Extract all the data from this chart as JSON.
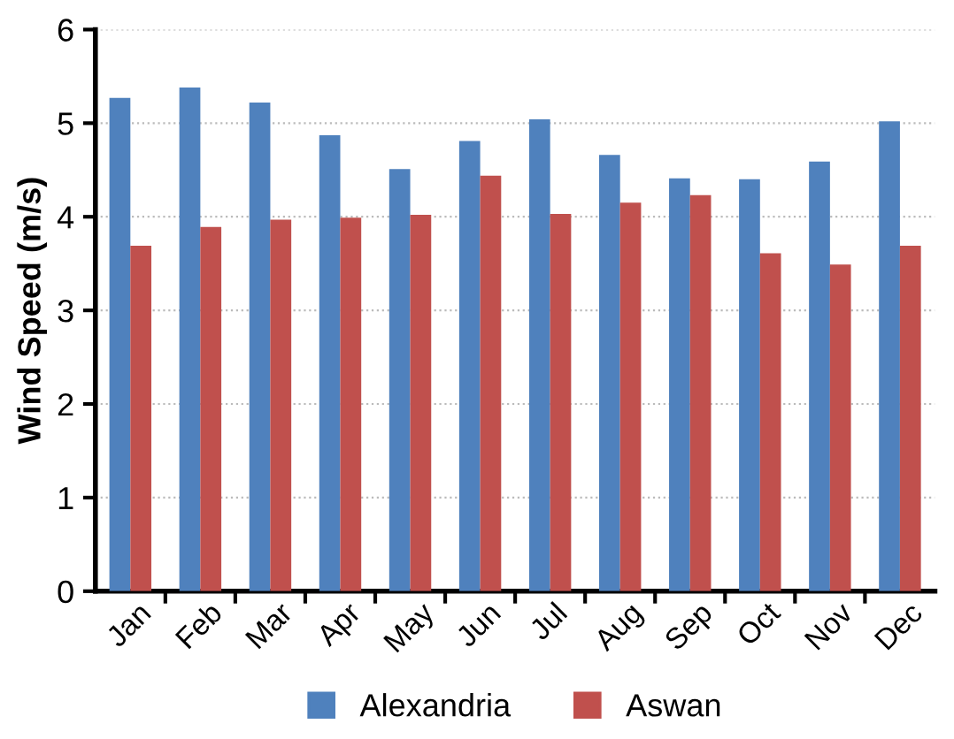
{
  "chart_data": {
    "type": "bar",
    "ylabel": "Wind Speed (m/s)",
    "categories": [
      "Jan",
      "Feb",
      "Mar",
      "Apr",
      "May",
      "Jun",
      "Jul",
      "Aug",
      "Sep",
      "Oct",
      "Nov",
      "Dec"
    ],
    "series": [
      {
        "name": "Alexandria",
        "color": "#4f81bd",
        "values": [
          5.27,
          5.38,
          5.22,
          4.87,
          4.51,
          4.81,
          5.04,
          4.66,
          4.41,
          4.4,
          4.59,
          5.02
        ]
      },
      {
        "name": "Aswan",
        "color": "#c0504d",
        "values": [
          3.69,
          3.89,
          3.97,
          3.99,
          4.02,
          4.44,
          4.03,
          4.15,
          4.23,
          3.61,
          3.49,
          3.69
        ]
      }
    ],
    "ylim": [
      0,
      6
    ],
    "yticks": [
      0,
      1,
      2,
      3,
      4,
      5,
      6
    ],
    "grid": "y",
    "legend": "bottom"
  }
}
